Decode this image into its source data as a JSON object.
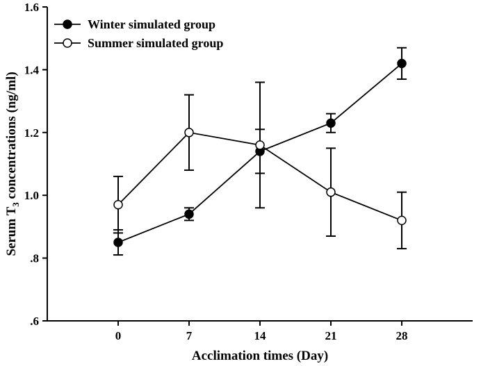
{
  "chart_data": {
    "type": "line",
    "xlabel": "Acclimation times (Day)",
    "ylabel_main": "Serum T",
    "ylabel_sub": "3",
    "ylabel_rest": " concentrations (ng/ml)",
    "xlim": [
      -7,
      35
    ],
    "ylim": [
      0.6,
      1.6
    ],
    "x_ticks": [
      0,
      7,
      14,
      21,
      28
    ],
    "x_tick_labels": [
      "0",
      "7",
      "14",
      "21",
      "28"
    ],
    "y_ticks": [
      0.6,
      0.8,
      1.0,
      1.2,
      1.4,
      1.6
    ],
    "y_tick_labels": [
      ".6",
      ".8",
      "1.0",
      "1.2",
      "1.4",
      "1.6"
    ],
    "grid": false,
    "legend_position": "top-left",
    "series": [
      {
        "name": "Winter simulated group",
        "marker": "filled-circle",
        "x": [
          0,
          7,
          14,
          21,
          28
        ],
        "y": [
          0.85,
          0.94,
          1.14,
          1.23,
          1.42
        ],
        "err": [
          0.04,
          0.02,
          0.07,
          0.03,
          0.05
        ]
      },
      {
        "name": "Summer simulated group",
        "marker": "open-circle",
        "x": [
          0,
          7,
          14,
          21,
          28
        ],
        "y": [
          0.97,
          1.2,
          1.16,
          1.01,
          0.92
        ],
        "err": [
          0.09,
          0.12,
          0.2,
          0.14,
          0.09
        ]
      }
    ]
  }
}
